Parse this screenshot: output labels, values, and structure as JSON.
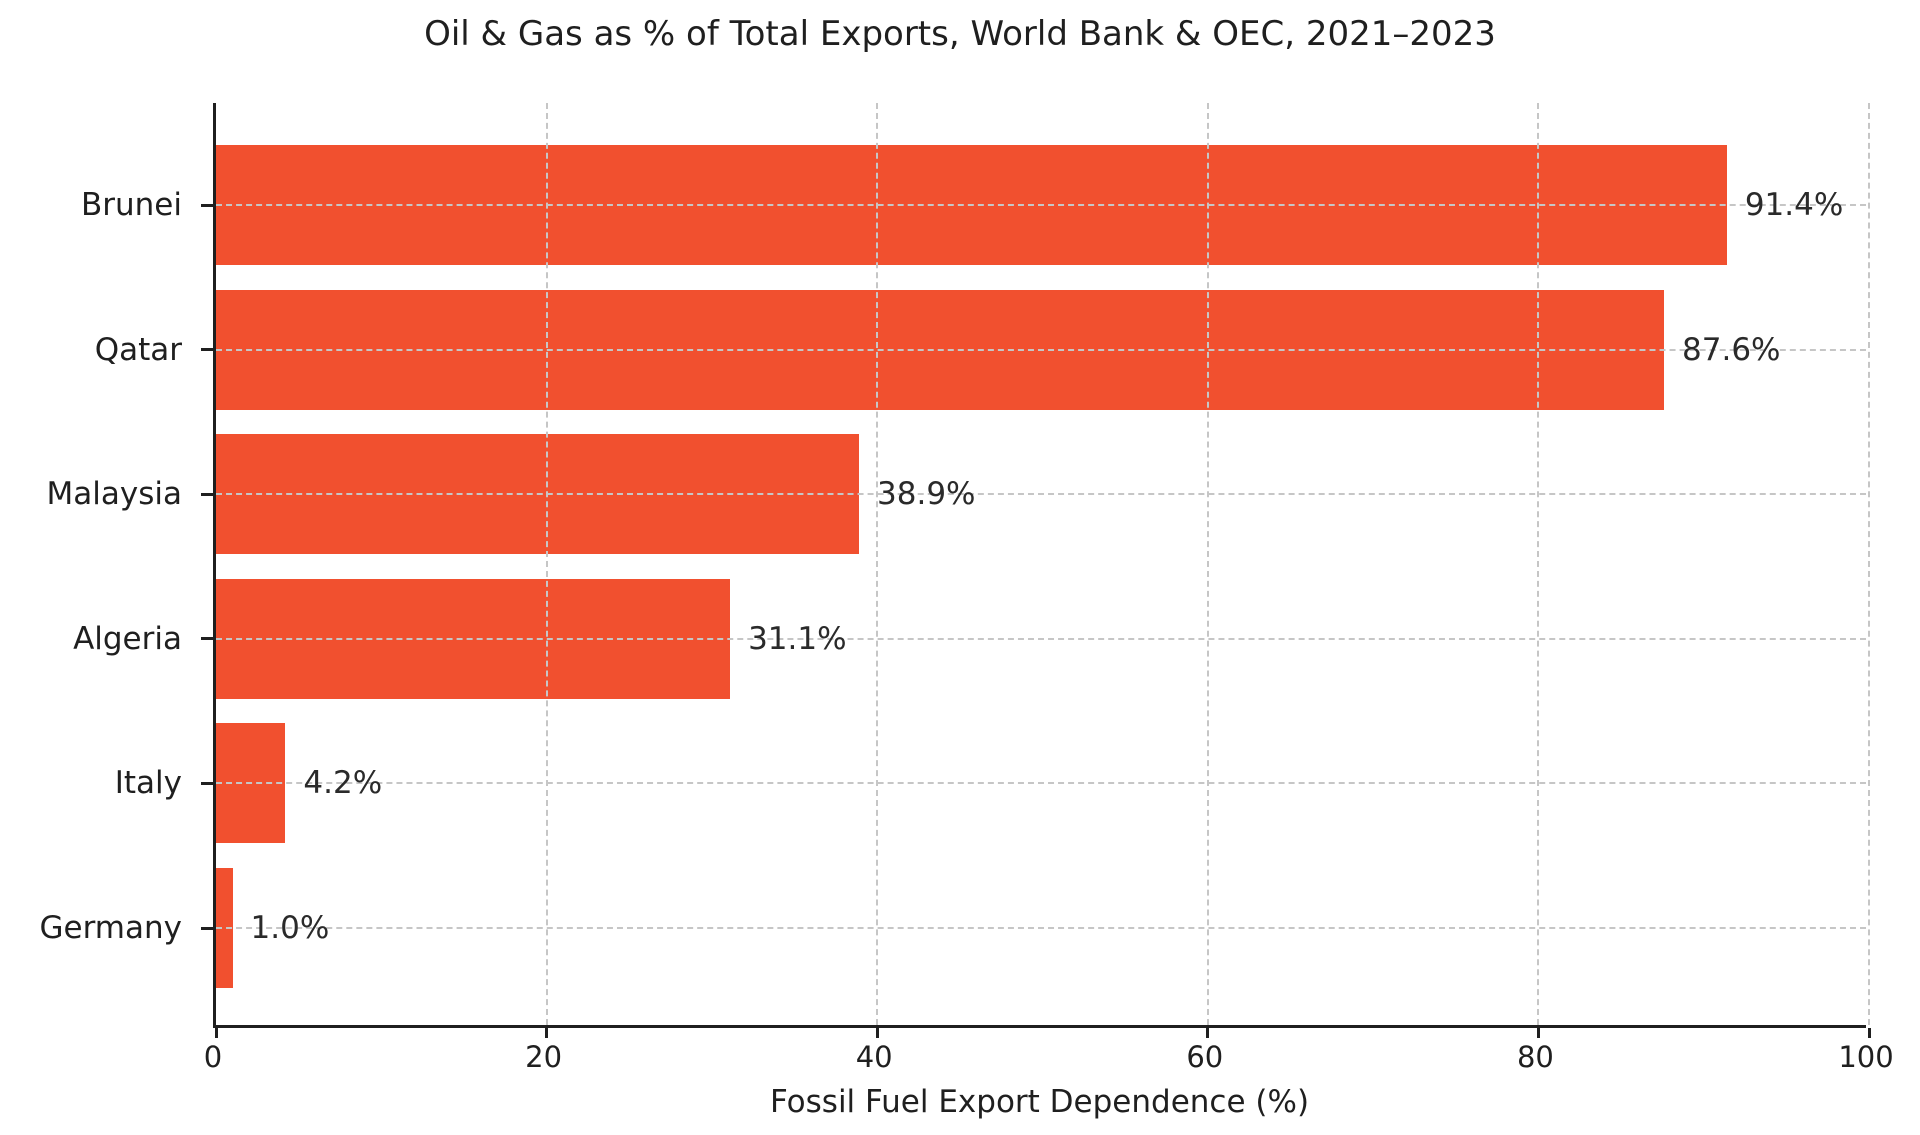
{
  "chart_data": {
    "type": "bar",
    "orientation": "horizontal",
    "title": "Oil & Gas as % of Total Exports, World Bank & OEC, 2021–2023",
    "xlabel": "Fossil Fuel Export Dependence (%)",
    "ylabel": "",
    "categories": [
      "Brunei",
      "Qatar",
      "Malaysia",
      "Algeria",
      "Italy",
      "Germany"
    ],
    "values": [
      91.4,
      87.6,
      38.9,
      31.1,
      4.2,
      1.0
    ],
    "value_labels": [
      "91.4%",
      "87.6%",
      "38.9%",
      "31.1%",
      "4.2%",
      "1.0%"
    ],
    "xlim": [
      0,
      100
    ],
    "xticks": [
      0,
      20,
      40,
      60,
      80,
      100
    ],
    "xtick_labels": [
      "0",
      "20",
      "40",
      "60",
      "80",
      "100"
    ],
    "grid": "both-dashed-above-bars",
    "legend": "none",
    "colors": {
      "bar": "#f1502f",
      "grid": "#c6c6c6",
      "text": "#1f1f1f",
      "spine": "#1f1f1f",
      "background": "#ffffff"
    }
  }
}
